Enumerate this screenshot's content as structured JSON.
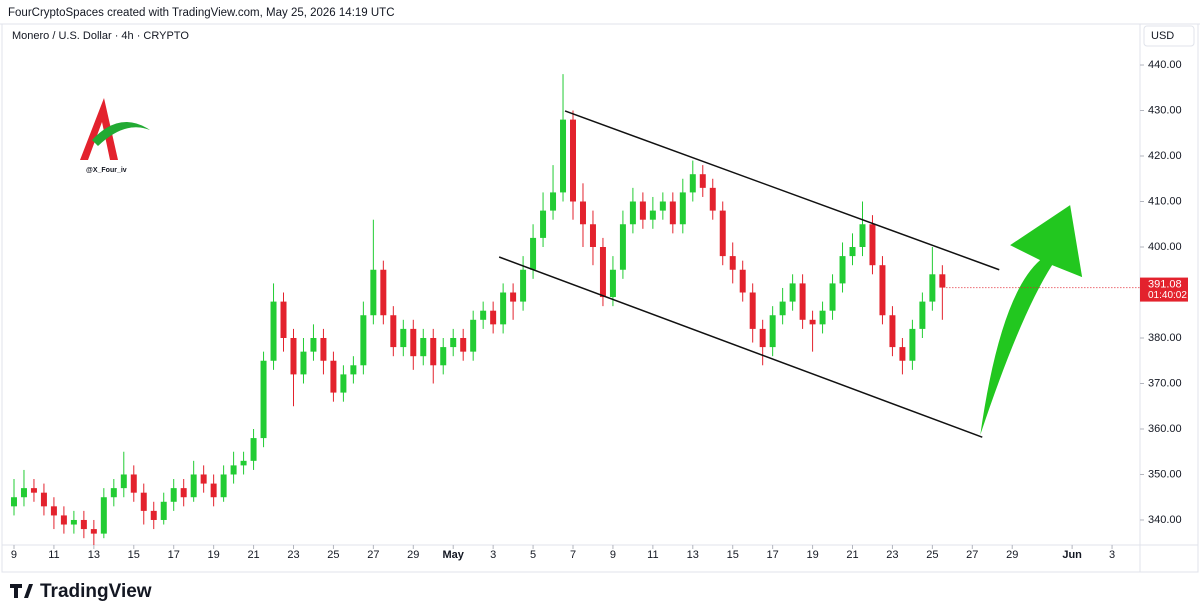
{
  "header": {
    "credit": "FourCryptoSpaces created with TradingView.com, May 25, 2026 14:19 UTC",
    "brand": "TradingView",
    "watermark": "@X_Four_iv"
  },
  "chart_data": {
    "type": "candlestick",
    "title": "Monero / U.S. Dollar · 4h · CRYPTO",
    "y_axis_unit": "USD",
    "up_color": "#22cc33",
    "down_color": "#e3222d",
    "x": [
      9,
      9.5,
      10,
      10.5,
      11,
      11.5,
      12,
      12.5,
      13,
      13.5,
      14,
      14.5,
      15,
      15.5,
      16,
      16.5,
      17,
      17.5,
      18,
      18.5,
      19,
      19.5,
      20,
      20.5,
      21,
      21.5,
      22,
      22.5,
      23,
      23.5,
      24,
      24.5,
      25,
      25.5,
      26,
      26.5,
      27,
      27.5,
      28,
      28.5,
      29,
      29.5,
      30,
      30.5,
      31,
      31.5,
      32,
      32.5,
      33,
      33.5,
      34,
      34.5,
      35,
      35.5,
      36,
      36.5,
      37,
      37.5,
      38,
      38.5,
      39,
      39.5,
      40,
      40.5,
      41,
      41.5,
      42,
      42.5,
      43,
      43.5,
      44,
      44.5,
      45,
      45.5,
      46,
      46.5,
      47,
      47.5,
      48,
      48.5,
      49,
      49.5,
      50,
      50.5,
      51,
      51.5,
      52,
      52.5,
      53,
      53.5,
      54,
      54.5,
      55,
      55.5
    ],
    "open": [
      343,
      345,
      347,
      346,
      343,
      341,
      339,
      340,
      338,
      337,
      345,
      347,
      350,
      346,
      342,
      340,
      344,
      347,
      345,
      350,
      348,
      345,
      350,
      352,
      353,
      358,
      375,
      388,
      380,
      372,
      377,
      380,
      375,
      368,
      372,
      374,
      385,
      395,
      385,
      378,
      382,
      376,
      380,
      374,
      378,
      380,
      377,
      384,
      386,
      383,
      390,
      388,
      395,
      402,
      408,
      412,
      428,
      410,
      405,
      400,
      389,
      395,
      405,
      410,
      406,
      408,
      410,
      405,
      412,
      416,
      413,
      408,
      398,
      395,
      390,
      382,
      378,
      385,
      388,
      392,
      384,
      383,
      386,
      392,
      398,
      400,
      405,
      396,
      385,
      378,
      375,
      382,
      388,
      394
    ],
    "high": [
      349,
      351,
      349,
      348,
      345,
      343,
      342,
      342,
      340,
      347,
      349,
      355,
      352,
      348,
      344,
      346,
      349,
      349,
      353,
      352,
      350,
      352,
      355,
      355,
      360,
      377,
      392,
      390,
      382,
      380,
      383,
      382,
      377,
      374,
      376,
      388,
      406,
      397,
      387,
      384,
      384,
      382,
      382,
      380,
      382,
      382,
      386,
      388,
      388,
      392,
      392,
      398,
      405,
      412,
      418,
      438,
      430,
      414,
      408,
      402,
      398,
      408,
      413,
      412,
      411,
      412,
      412,
      415,
      419,
      418,
      415,
      410,
      401,
      397,
      392,
      384,
      387,
      391,
      394,
      394,
      386,
      388,
      394,
      401,
      403,
      410,
      407,
      398,
      387,
      380,
      384,
      390,
      400,
      396
    ],
    "low": [
      341,
      343,
      344,
      341,
      338,
      337,
      337,
      336,
      334,
      336,
      343,
      345,
      344,
      339,
      338,
      339,
      342,
      343,
      344,
      346,
      343,
      344,
      348,
      350,
      351,
      356,
      373,
      377,
      365,
      370,
      375,
      372,
      366,
      366,
      370,
      372,
      383,
      383,
      376,
      376,
      373,
      374,
      370,
      372,
      376,
      375,
      375,
      382,
      381,
      381,
      384,
      386,
      393,
      400,
      406,
      410,
      406,
      400,
      396,
      387,
      387,
      393,
      403,
      404,
      404,
      406,
      403,
      403,
      410,
      411,
      406,
      396,
      392,
      388,
      379,
      374,
      376,
      383,
      386,
      382,
      377,
      381,
      384,
      390,
      396,
      398,
      394,
      383,
      376,
      372,
      373,
      380,
      386,
      384
    ],
    "close": [
      345,
      347,
      346,
      343,
      341,
      339,
      340,
      338,
      337,
      345,
      347,
      350,
      346,
      342,
      340,
      344,
      347,
      345,
      350,
      348,
      345,
      350,
      352,
      353,
      358,
      375,
      388,
      380,
      372,
      377,
      380,
      375,
      368,
      372,
      374,
      385,
      395,
      385,
      378,
      382,
      376,
      380,
      374,
      378,
      380,
      377,
      384,
      386,
      383,
      390,
      388,
      395,
      402,
      408,
      412,
      428,
      410,
      405,
      400,
      389,
      395,
      405,
      410,
      406,
      408,
      410,
      405,
      412,
      416,
      413,
      408,
      398,
      395,
      390,
      382,
      378,
      385,
      388,
      392,
      384,
      383,
      386,
      392,
      398,
      400,
      405,
      396,
      385,
      378,
      375,
      382,
      388,
      394,
      391.08
    ],
    "countdown": "01:40:02",
    "xlim": [
      8.7,
      65.4
    ],
    "ylim": [
      334.5,
      444.4
    ],
    "xticks": [
      9,
      11,
      13,
      15,
      17,
      19,
      21,
      23,
      25,
      27,
      29,
      {
        "value": 31,
        "label": "May"
      },
      {
        "value": 33,
        "label": "3"
      },
      {
        "value": 35,
        "label": "5"
      },
      {
        "value": 37,
        "label": "7"
      },
      {
        "value": 39,
        "label": "9"
      },
      {
        "value": 41,
        "label": "11"
      },
      {
        "value": 43,
        "label": "13"
      },
      {
        "value": 45,
        "label": "15"
      },
      {
        "value": 47,
        "label": "17"
      },
      {
        "value": 49,
        "label": "19"
      },
      {
        "value": 51,
        "label": "21"
      },
      {
        "value": 53,
        "label": "23"
      },
      {
        "value": 55,
        "label": "25"
      },
      {
        "value": 57,
        "label": "27"
      },
      {
        "value": 59,
        "label": "29"
      },
      {
        "value": 62,
        "label": "Jun"
      },
      {
        "value": 64,
        "label": "3"
      }
    ],
    "yticks": [
      {
        "value": 340,
        "label": "340.00"
      },
      {
        "value": 350,
        "label": "350.00"
      },
      {
        "value": 360,
        "label": "360.00"
      },
      {
        "value": 370,
        "label": "370.00"
      },
      {
        "value": 380,
        "label": "380.00"
      },
      {
        "value": 390,
        "label": "390.00"
      },
      {
        "value": 400,
        "label": "400.00"
      },
      {
        "value": 410,
        "label": "410.00"
      },
      {
        "value": 420,
        "label": "420.00"
      },
      {
        "value": 430,
        "label": "430.00"
      },
      {
        "value": 440,
        "label": "440.00"
      }
    ],
    "grid": false,
    "trendlines": [
      {
        "x": [
          36.6,
          58.35
        ],
        "y": [
          429.9,
          395
        ],
        "color": "#111111"
      },
      {
        "x": [
          33.3,
          57.5
        ],
        "y": [
          397.8,
          358.2
        ],
        "color": "#111111"
      }
    ],
    "arrow": {
      "x": [
        57.4,
        61.9
      ],
      "y": [
        358.7,
        409.2
      ],
      "color": "#22c71f"
    }
  }
}
